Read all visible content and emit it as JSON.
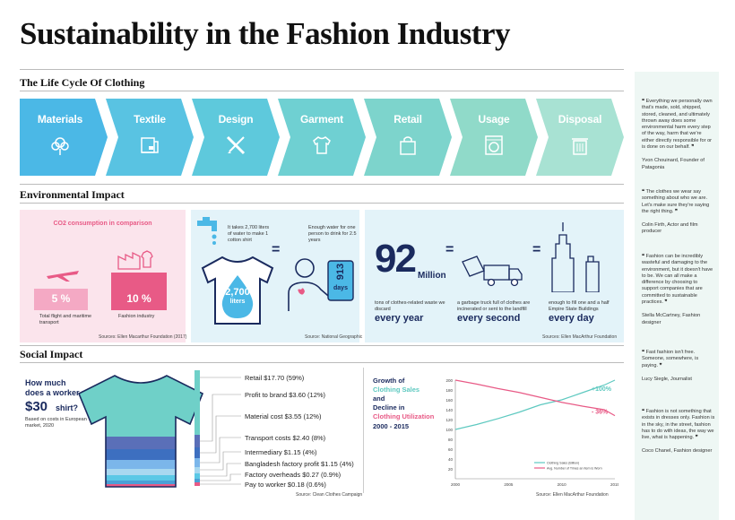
{
  "title": "Sustainability in the Fashion Industry",
  "sections": {
    "lifecycle": "The Life Cycle Of Clothing",
    "environmental": "Environmental Impact",
    "social": "Social Impact"
  },
  "lifecycle_steps": [
    {
      "label": "Materials",
      "icon": "cotton-icon",
      "color": "#4bb8e6"
    },
    {
      "label": "Textile",
      "icon": "fabric-roll-icon",
      "color": "#59c3e2"
    },
    {
      "label": "Design",
      "icon": "ruler-pencil-icon",
      "color": "#5ec9dc"
    },
    {
      "label": "Garment",
      "icon": "shirt-icon",
      "color": "#6fd0d2"
    },
    {
      "label": "Retail",
      "icon": "shopping-bag-icon",
      "color": "#7dd4cc"
    },
    {
      "label": "Usage",
      "icon": "washing-machine-icon",
      "color": "#90dac9"
    },
    {
      "label": "Disposal",
      "icon": "trash-bin-icon",
      "color": "#a8e2d3"
    }
  ],
  "co2": {
    "title": "CO2 consumption in comparison",
    "flight_value": "5 %",
    "flight_label": "Total flight and maritime transport",
    "fashion_value": "10 %",
    "fashion_label": "Fashion industry",
    "source": "Sources: Ellen Macarthur Foundation (2017)",
    "flight_color": "#f4a9c4",
    "fashion_color": "#e85a86"
  },
  "water": {
    "text": "It takes 2,700 liters of water to make 1 cotton shirt",
    "value": "2,700",
    "unit": "liters",
    "eq": "=",
    "drink_text": "Enough water for one person to drink for 2.5 years",
    "days_value": "913",
    "days_unit": "days",
    "source": "Source: National Geographic"
  },
  "waste": {
    "big": "92",
    "big_unit": "Million",
    "desc1": "tons of clothes-related waste we discard",
    "period1": "every year",
    "eq": "=",
    "desc2": "a garbage truck full of clothes are incinerated or sent to the landfill",
    "period2": "every second",
    "eq2": "=",
    "desc3": "enough to fill one and a half Empire State Buildings",
    "period3": "every day",
    "source": "Sources: Ellen MacArthur Foundation"
  },
  "worker": {
    "q1": "How much",
    "q2": "does a worker make on a",
    "q3": "$30",
    "q4": "shirt?",
    "basis": "Based on costs in European market, 2020",
    "source": "Source: Clean Clothes Campaign"
  },
  "cost_breakdown": [
    {
      "label": "Retail $17.70 (59%)",
      "color": "#6fd0c8"
    },
    {
      "label": "Profit to brand $3.60 (12%)",
      "color": "#5a6fb8"
    },
    {
      "label": "Material cost $3.55 (12%)",
      "color": "#3d6fc0"
    },
    {
      "label": "Transport costs $2.40 (8%)",
      "color": "#7bb6ea"
    },
    {
      "label": "Intermediary $1.15 (4%)",
      "color": "#a8d8f0"
    },
    {
      "label": "Bangladesh factory profit $1.15 (4%)",
      "color": "#5ac8e6"
    },
    {
      "label": "Factory overheads $0.27 (0.9%)",
      "color": "#4aa0d6"
    },
    {
      "label": "Pay to worker $0.18 (0.6%)",
      "color": "#e85a86"
    }
  ],
  "growth": {
    "t1": "Growth of",
    "t2": "Clothing Sales",
    "t3": "and",
    "t4": "Decline in",
    "t5": "Clothing Utilization",
    "t6": "2000 - 2015",
    "source": "Source: Ellen MacArthur Foundation"
  },
  "chart_data": {
    "type": "line",
    "title": "Growth of Clothing Sales and Decline in Clothing Utilization 2000 - 2015",
    "x": [
      2000,
      2002,
      2004,
      2006,
      2008,
      2010,
      2012,
      2014,
      2015
    ],
    "xticks": [
      "2000",
      "2005",
      "2010",
      "2015"
    ],
    "yticks": [
      "200",
      "180",
      "160",
      "140",
      "120",
      "100",
      "80",
      "60",
      "40",
      "20"
    ],
    "ylim": [
      0,
      200
    ],
    "series": [
      {
        "name": "Clothing Sales (Billion)",
        "values": [
          100,
          110,
          122,
          135,
          150,
          160,
          175,
          190,
          200
        ],
        "color": "#5ec9c0",
        "annotation": "+100%"
      },
      {
        "name": "Avg. Number of Times an Item is Worn",
        "values": [
          200,
          192,
          183,
          175,
          165,
          155,
          147,
          140,
          128
        ],
        "color": "#e85a86",
        "annotation": "- 36%"
      }
    ]
  },
  "quotes": [
    {
      "mark": "❝",
      "text": "Everything we personally own that's made, sold, shipped, stored, cleaned, and ultimately thrown away does some environmental harm every step of the way, harm that we're either directly responsible for or is done on our behalf.",
      "end": "❞",
      "author": "Yvon Chouinard, Founder of Patagonia"
    },
    {
      "mark": "❝",
      "text": "The clothes we wear say something about who we are. Let's make sure they're saying the right thing.",
      "end": "❞",
      "author": "Colin Firth, Actor and film producer"
    },
    {
      "mark": "❝",
      "text": "Fashion can be incredibly wasteful and damaging to the environment, but it doesn't have to be. We can all make a difference by choosing to support companies that are committed to sustainable practices.",
      "end": "❞",
      "author": "Stella McCartney, Fashion designer"
    },
    {
      "mark": "❝",
      "text": "Fast fashion isn't free. Someone, somewhere, is paying.",
      "end": "❞",
      "author": "Lucy Siegle, Journalist"
    },
    {
      "mark": "❝",
      "text": "Fashion is not something that exists in dresses only. Fashion is in the sky, in the street, fashion has to do with ideas, the way we live, what is happening.",
      "end": "❞",
      "author": "Coco Chanel, Fashion designer"
    }
  ]
}
